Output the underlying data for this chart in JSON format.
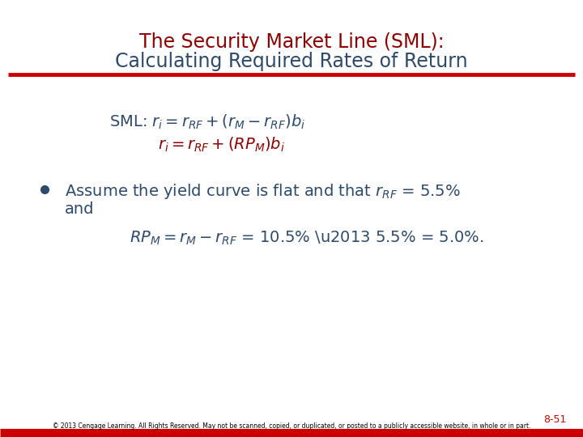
{
  "title_line1": "The Security Market Line (SML):",
  "title_line2": "Calculating Required Rates of Return",
  "title_color": "#8B0000",
  "body_color": "#2E4A6B",
  "red_line_color": "#CC0000",
  "background_color": "#FFFFFF",
  "footer_text": "© 2013 Cengage Learning. All Rights Reserved. May not be scanned, copied, or duplicated, or posted to a publicly accessible website, in whole or in part.",
  "page_number": "8-51",
  "footer_color": "#CC0000",
  "title_fontsize": 17,
  "body_fontsize": 14,
  "bullet_fontsize": 14
}
